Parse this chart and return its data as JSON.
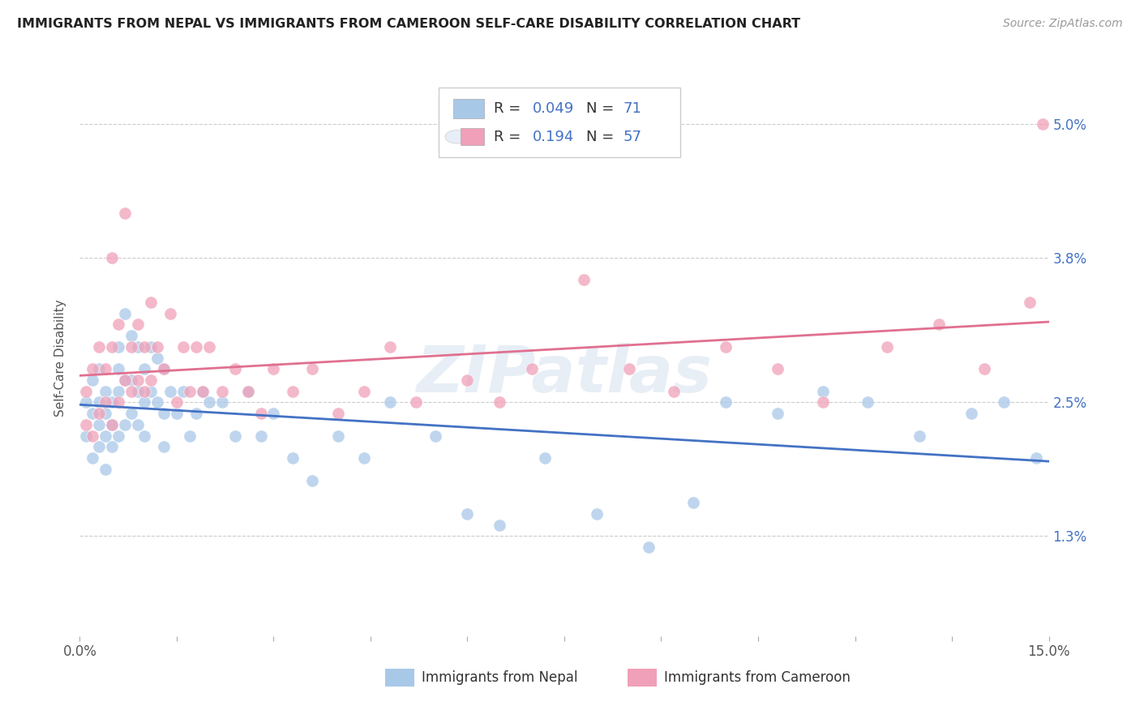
{
  "title": "IMMIGRANTS FROM NEPAL VS IMMIGRANTS FROM CAMEROON SELF-CARE DISABILITY CORRELATION CHART",
  "source": "Source: ZipAtlas.com",
  "ylabel": "Self-Care Disability",
  "yticks": [
    "1.3%",
    "2.5%",
    "3.8%",
    "5.0%"
  ],
  "ytick_values": [
    0.013,
    0.025,
    0.038,
    0.05
  ],
  "xmin": 0.0,
  "xmax": 0.15,
  "ymin": 0.004,
  "ymax": 0.054,
  "legend_r1": "0.049",
  "legend_n1": "71",
  "legend_r2": "0.194",
  "legend_n2": "57",
  "legend_label1": "Immigrants from Nepal",
  "legend_label2": "Immigrants from Cameroon",
  "nepal_color": "#a8c8e8",
  "cameroon_color": "#f0a0b8",
  "nepal_line_color": "#4472c4",
  "cameroon_line_color": "#e07090",
  "background_color": "#ffffff",
  "nepal_x": [
    0.001,
    0.001,
    0.002,
    0.002,
    0.002,
    0.003,
    0.003,
    0.003,
    0.003,
    0.004,
    0.004,
    0.004,
    0.004,
    0.005,
    0.005,
    0.005,
    0.006,
    0.006,
    0.006,
    0.006,
    0.007,
    0.007,
    0.007,
    0.008,
    0.008,
    0.008,
    0.009,
    0.009,
    0.009,
    0.01,
    0.01,
    0.01,
    0.011,
    0.011,
    0.012,
    0.012,
    0.013,
    0.013,
    0.013,
    0.014,
    0.015,
    0.016,
    0.017,
    0.018,
    0.019,
    0.02,
    0.022,
    0.024,
    0.026,
    0.028,
    0.03,
    0.033,
    0.036,
    0.04,
    0.044,
    0.048,
    0.055,
    0.06,
    0.065,
    0.072,
    0.08,
    0.088,
    0.095,
    0.1,
    0.108,
    0.115,
    0.122,
    0.13,
    0.138,
    0.143,
    0.148
  ],
  "nepal_y": [
    0.022,
    0.025,
    0.02,
    0.024,
    0.027,
    0.021,
    0.023,
    0.025,
    0.028,
    0.022,
    0.024,
    0.026,
    0.019,
    0.023,
    0.025,
    0.021,
    0.03,
    0.026,
    0.022,
    0.028,
    0.033,
    0.027,
    0.023,
    0.031,
    0.027,
    0.024,
    0.03,
    0.026,
    0.023,
    0.028,
    0.025,
    0.022,
    0.03,
    0.026,
    0.029,
    0.025,
    0.028,
    0.024,
    0.021,
    0.026,
    0.024,
    0.026,
    0.022,
    0.024,
    0.026,
    0.025,
    0.025,
    0.022,
    0.026,
    0.022,
    0.024,
    0.02,
    0.018,
    0.022,
    0.02,
    0.025,
    0.022,
    0.015,
    0.014,
    0.02,
    0.015,
    0.012,
    0.016,
    0.025,
    0.024,
    0.026,
    0.025,
    0.022,
    0.024,
    0.025,
    0.02
  ],
  "cameroon_x": [
    0.001,
    0.001,
    0.002,
    0.002,
    0.003,
    0.003,
    0.004,
    0.004,
    0.005,
    0.005,
    0.005,
    0.006,
    0.006,
    0.007,
    0.007,
    0.008,
    0.008,
    0.009,
    0.009,
    0.01,
    0.01,
    0.011,
    0.011,
    0.012,
    0.013,
    0.014,
    0.015,
    0.016,
    0.017,
    0.018,
    0.019,
    0.02,
    0.022,
    0.024,
    0.026,
    0.028,
    0.03,
    0.033,
    0.036,
    0.04,
    0.044,
    0.048,
    0.052,
    0.06,
    0.065,
    0.07,
    0.078,
    0.085,
    0.092,
    0.1,
    0.108,
    0.115,
    0.125,
    0.133,
    0.14,
    0.147,
    0.149
  ],
  "cameroon_y": [
    0.023,
    0.026,
    0.022,
    0.028,
    0.024,
    0.03,
    0.025,
    0.028,
    0.023,
    0.03,
    0.038,
    0.025,
    0.032,
    0.027,
    0.042,
    0.03,
    0.026,
    0.032,
    0.027,
    0.03,
    0.026,
    0.034,
    0.027,
    0.03,
    0.028,
    0.033,
    0.025,
    0.03,
    0.026,
    0.03,
    0.026,
    0.03,
    0.026,
    0.028,
    0.026,
    0.024,
    0.028,
    0.026,
    0.028,
    0.024,
    0.026,
    0.03,
    0.025,
    0.027,
    0.025,
    0.028,
    0.036,
    0.028,
    0.026,
    0.03,
    0.028,
    0.025,
    0.03,
    0.032,
    0.028,
    0.034,
    0.05
  ]
}
